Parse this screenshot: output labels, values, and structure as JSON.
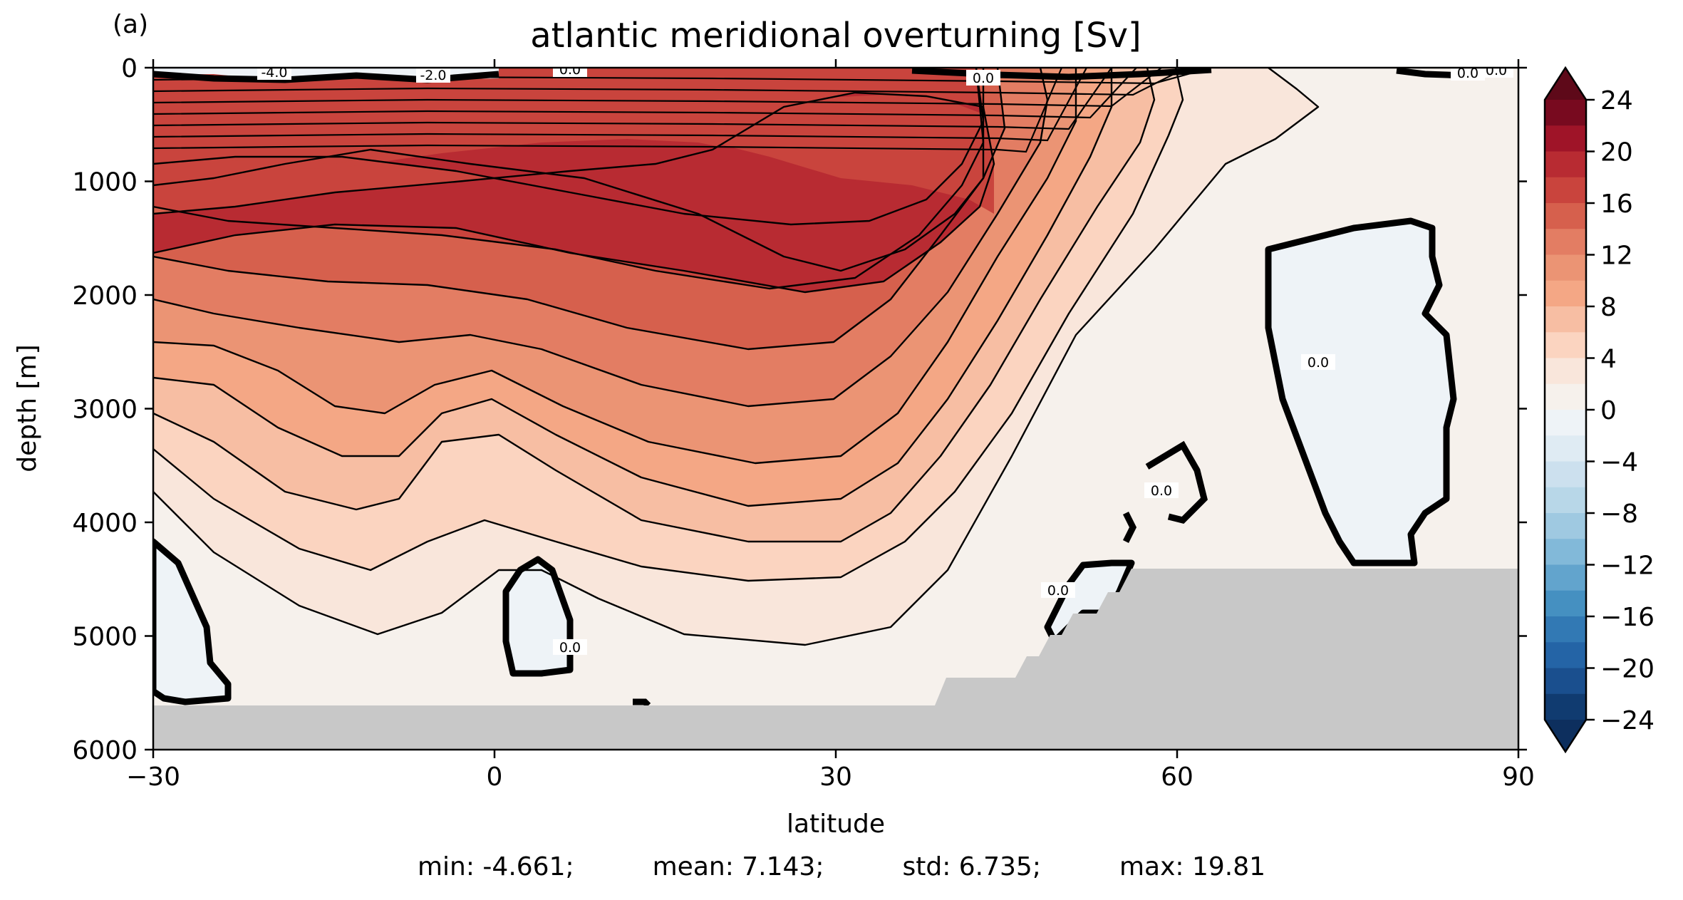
{
  "chart_data": {
    "type": "heatmap",
    "panel_label": "(a)",
    "title": "atlantic meridional overturning [Sv]",
    "xlabel": "latitude",
    "ylabel": "depth [m]",
    "x_ticks": [
      "−30",
      "0",
      "30",
      "60",
      "90"
    ],
    "x_tick_values": [
      -30,
      0,
      30,
      60,
      90
    ],
    "y_ticks": [
      "0",
      "1000",
      "2000",
      "3000",
      "4000",
      "5000",
      "6000"
    ],
    "y_tick_values": [
      0,
      1000,
      2000,
      3000,
      4000,
      5000,
      6000
    ],
    "xlim": [
      -30,
      90
    ],
    "ylim": [
      6000,
      0
    ],
    "colormap": "RdBu_r",
    "colorbar": {
      "ticks": [
        "24",
        "20",
        "16",
        "12",
        "8",
        "4",
        "0",
        "−4",
        "−8",
        "−12",
        "−16",
        "−20",
        "−24"
      ],
      "tick_values": [
        24,
        20,
        16,
        12,
        8,
        4,
        0,
        -4,
        -8,
        -12,
        -16,
        -20,
        -24
      ],
      "range": [
        -24,
        24
      ],
      "level_step": 2,
      "extend": "both",
      "colors_top_to_bottom": [
        "#780a1f",
        "#9f1428",
        "#b82b32",
        "#c9443d",
        "#d6604d",
        "#e37d63",
        "#eb9474",
        "#f4a785",
        "#f7bea3",
        "#fbd4c0",
        "#f9e6db",
        "#f6f1ec",
        "#eef3f7",
        "#dfebf3",
        "#cce0ee",
        "#b8d7e8",
        "#9fc9e1",
        "#82b9d9",
        "#62a4cd",
        "#4590c1",
        "#3279b4",
        "#2464a6",
        "#1a4f8e",
        "#103b70"
      ],
      "extend_top_color": "#5e0919",
      "extend_bottom_color": "#0d2f5e"
    },
    "contour_labels": [
      "-4.0",
      "-2.0",
      "0.0",
      "0.0",
      "0.0",
      "0.0",
      "0.0",
      "0.0",
      "0.0",
      "0.0"
    ],
    "land_color": "#c8c8c8",
    "stats": {
      "min": "min: -4.661;",
      "mean": "mean: 7.143;",
      "std": "std: 6.735;",
      "max": "max: 19.81"
    },
    "min": -4.661,
    "mean": 7.143,
    "std": 6.735,
    "max": 19.81
  }
}
